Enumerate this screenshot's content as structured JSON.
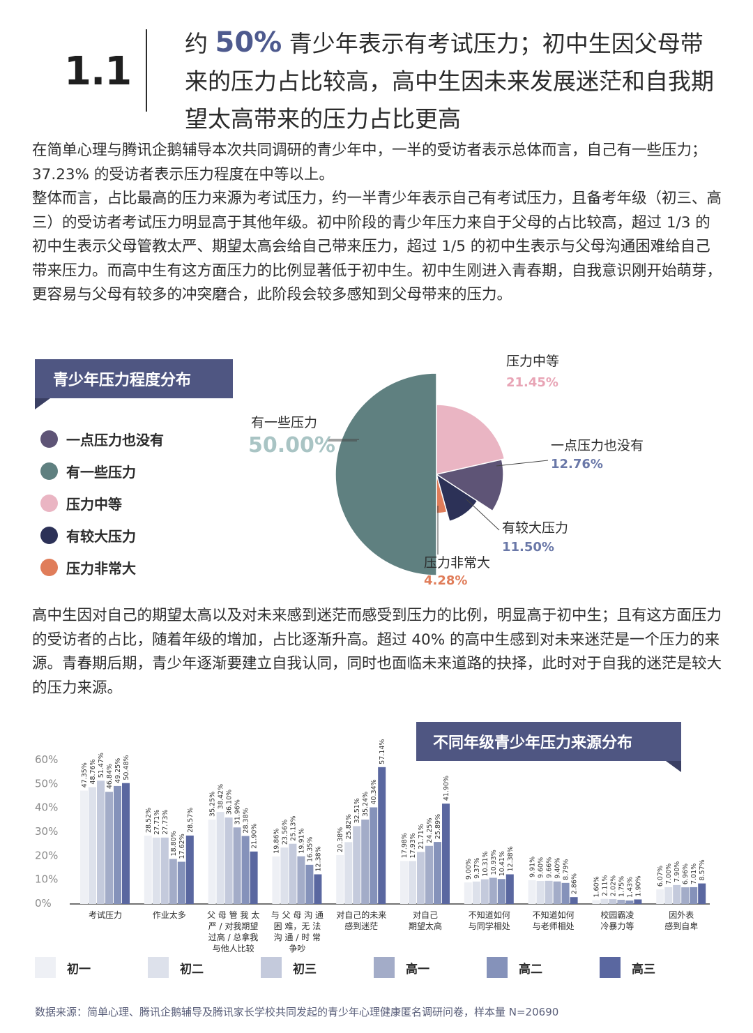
{
  "header": {
    "section_number": "1.1",
    "headline_pre": "约 ",
    "headline_big": "50%",
    "headline_post": " 青少年表示有考试压力；初中生因父母带来的压力占比较高，高中生因未来发展迷茫和自我期望太高带来的压力占比更高"
  },
  "paragraph1": "在简单心理与腾讯企鹅辅导本次共同调研的青少年中，一半的受访者表示总体而言，自己有一些压力；37.23% 的受访者表示压力程度在中等以上。\n整体而言，占比最高的压力来源为考试压力，约一半青少年表示自己有考试压力，且备考年级（初三、高三）的受访者考试压力明显高于其他年级。初中阶段的青少年压力来自于父母的占比较高，超过 1/3 的初中生表示父母管教太严、期望太高会给自己带来压力，超过 1/5 的初中生表示与父母沟通困难给自己带来压力。而高中生有这方面压力的比例显著低于初中生。初中生刚进入青春期，自我意识刚开始萌芽，更容易与父母有较多的冲突磨合，此阶段会较多感知到父母带来的压力。",
  "paragraph2": "高中生因对自己的期望太高以及对未来感到迷茫而感受到压力的比例，明显高于初中生；且有这方面压力的受访者的占比，随着年级的增加，占比逐渐升高。超过 40% 的高中生感到对未来迷茫是一个压力的来源。青春期后期，青少年逐渐要建立自我认同，同时也面临未来道路的抉择，此时对于自我的迷茫是较大的压力来源。",
  "pie_section": {
    "banner": "青少年压力程度分布",
    "legend": [
      {
        "label": "一点压力也没有",
        "color": "#5e5476"
      },
      {
        "label": "有一些压力",
        "color": "#5f8080"
      },
      {
        "label": "压力中等",
        "color": "#eab5c3"
      },
      {
        "label": "有较大压力",
        "color": "#2c3157"
      },
      {
        "label": "压力非常大",
        "color": "#e07d5a"
      }
    ]
  },
  "bar_section": {
    "banner": "不同年级青少年压力来源分布",
    "legend": [
      {
        "label": "初一",
        "color": "#eef0f5"
      },
      {
        "label": "初二",
        "color": "#dde1eb"
      },
      {
        "label": "初三",
        "color": "#c4cadc"
      },
      {
        "label": "高一",
        "color": "#a3acc8"
      },
      {
        "label": "高二",
        "color": "#8592ba"
      },
      {
        "label": "高三",
        "color": "#5a67a0"
      }
    ]
  },
  "source": "数据来源：简单心理、腾讯企鹅辅导及腾讯家长学校共同发起的青少年心理健康匿名调研问卷，样本量 N=20690",
  "chart_data": [
    {
      "type": "pie",
      "title": "青少年压力程度分布",
      "slices": [
        {
          "label": "压力中等",
          "value": 21.45,
          "value_label": "21.45%",
          "color": "#eab5c3",
          "label_color": "#e8a4b5"
        },
        {
          "label": "一点压力也没有",
          "value": 12.76,
          "value_label": "12.76%",
          "color": "#5e5476",
          "label_color": "#6a78a8"
        },
        {
          "label": "有较大压力",
          "value": 11.5,
          "value_label": "11.50%",
          "color": "#2c3157",
          "label_color": "#6a78a8"
        },
        {
          "label": "压力非常大",
          "value": 4.28,
          "value_label": "4.28%",
          "color": "#e07d5a",
          "label_color": "#e07d5a"
        },
        {
          "label": "有一些压力",
          "value": 50.0,
          "value_label": "50.00%",
          "color": "#5f8080",
          "label_color": "#a9c4c4"
        }
      ]
    },
    {
      "type": "bar",
      "title": "不同年级青少年压力来源分布",
      "y_ticks": [
        "60%",
        "50%",
        "40%",
        "30%",
        "20%",
        "10%",
        "0%"
      ],
      "ylim": [
        0,
        60
      ],
      "categories": [
        [
          "考试压力"
        ],
        [
          "作业太多"
        ],
        [
          "父 母 管 我 太",
          "严 / 对我期望",
          "过高 / 总拿我",
          "与他人比较"
        ],
        [
          "与 父 母 沟 通",
          "困 难，无 法",
          "沟 通 / 时 常",
          "争吵"
        ],
        [
          "对自己的未来",
          "感到迷茫"
        ],
        [
          "对自己",
          "期望太高"
        ],
        [
          "不知道如何",
          "与同学相处"
        ],
        [
          "不知道如何",
          "与老师相处"
        ],
        [
          "校园霸凌",
          "冷暴力等"
        ],
        [
          "因外表",
          "感到自卑"
        ]
      ],
      "series": [
        {
          "name": "初一",
          "values": [
            47.35,
            28.52,
            35.25,
            19.86,
            20.38,
            17.98,
            9.0,
            9.91,
            1.6,
            6.07
          ]
        },
        {
          "name": "初二",
          "values": [
            48.76,
            27.71,
            38.42,
            23.56,
            25.82,
            17.93,
            9.37,
            9.6,
            2.11,
            7.0
          ]
        },
        {
          "name": "初三",
          "values": [
            51.47,
            27.73,
            36.1,
            25.13,
            32.51,
            21.71,
            10.31,
            9.66,
            2.02,
            7.9
          ]
        },
        {
          "name": "高一",
          "values": [
            46.84,
            18.8,
            31.96,
            19.91,
            35.24,
            24.25,
            10.93,
            9.4,
            1.75,
            6.96
          ]
        },
        {
          "name": "高二",
          "values": [
            49.25,
            17.62,
            28.38,
            16.35,
            40.34,
            25.89,
            10.41,
            8.79,
            1.43,
            7.01
          ]
        },
        {
          "name": "高三",
          "values": [
            50.48,
            28.57,
            21.9,
            12.38,
            57.14,
            41.9,
            12.38,
            2.86,
            1.9,
            8.57
          ]
        }
      ],
      "value_labels": [
        [
          "47.35%",
          "28.52%",
          "35.25%",
          "19.86%",
          "20.38%",
          "17.98%",
          "9.00%",
          "9.91%",
          "1.60%",
          "6.07%"
        ],
        [
          "48.76%",
          "27.71%",
          "38.42%",
          "23.56%",
          "25.82%",
          "17.93%",
          "9.37%",
          "9.60%",
          "2.11%",
          "7.00%"
        ],
        [
          "51.47%",
          "27.73%",
          "36.10%",
          "25.13%",
          "32.51%",
          "21.71%",
          "10.31%",
          "9.66%",
          "2.02%",
          "7.90%"
        ],
        [
          "46.84%",
          "18.80%",
          "31.96%",
          "19.91%",
          "35.24%",
          "24.25%",
          "10.93%",
          "9.40%",
          "1.75%",
          "6.96%"
        ],
        [
          "49.25%",
          "17.62%",
          "28.38%",
          "16.35%",
          "40.34%",
          "25.89%",
          "10.41%",
          "8.79%",
          "1.43%",
          "7.01%"
        ],
        [
          "50.48%",
          "28.57%",
          "21.90%",
          "12.38%",
          "57.14%",
          "41.90%",
          "12.38%",
          "2.86%",
          "1.90%",
          "8.57%"
        ]
      ]
    }
  ]
}
